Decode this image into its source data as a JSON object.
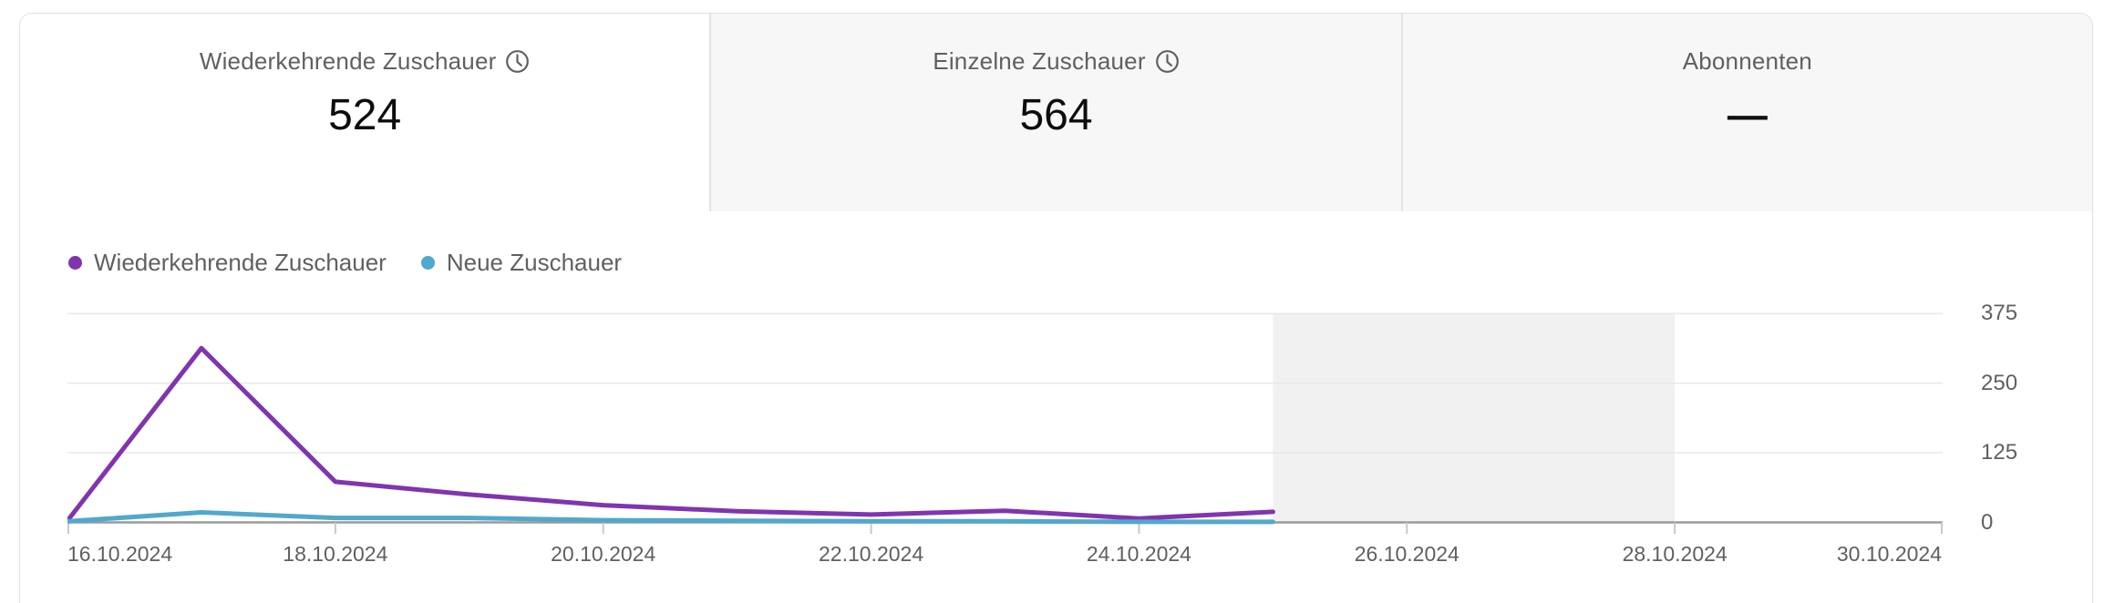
{
  "tabs": [
    {
      "label": "Wiederkehrende Zuschauer",
      "value": "524",
      "has_clock_icon": true,
      "active": true
    },
    {
      "label": "Einzelne Zuschauer",
      "value": "564",
      "has_clock_icon": true,
      "active": false
    },
    {
      "label": "Abonnenten",
      "value": "—",
      "has_clock_icon": false,
      "active": false
    }
  ],
  "chart_data": {
    "type": "line",
    "title": "",
    "x": [
      "16.10.2024",
      "17.10.2024",
      "18.10.2024",
      "19.10.2024",
      "20.10.2024",
      "21.10.2024",
      "22.10.2024",
      "23.10.2024",
      "24.10.2024",
      "25.10.2024"
    ],
    "series": [
      {
        "name": "Wiederkehrende Zuschauer",
        "color": "#8134af",
        "values": [
          5,
          313,
          73,
          50,
          31,
          20,
          14,
          21,
          7,
          19
        ]
      },
      {
        "name": "Neue Zuschauer",
        "color": "#51a8cd",
        "values": [
          2,
          18,
          8,
          8,
          4,
          3,
          2,
          2,
          1,
          1
        ]
      }
    ],
    "x_tick_labels": [
      "16.10.2024",
      "18.10.2024",
      "20.10.2024",
      "22.10.2024",
      "24.10.2024",
      "26.10.2024",
      "28.10.2024",
      "30.10.2024"
    ],
    "yticks": [
      0,
      125,
      250,
      375
    ],
    "ylim": [
      0,
      375
    ],
    "x_axis_range": [
      "16.10.2024",
      "30.10.2024"
    ],
    "future_band": {
      "start": "25.10.2024",
      "end": "28.10.2024",
      "color": "#f1f1f1"
    },
    "grid": true,
    "legend_position": "top-left"
  }
}
